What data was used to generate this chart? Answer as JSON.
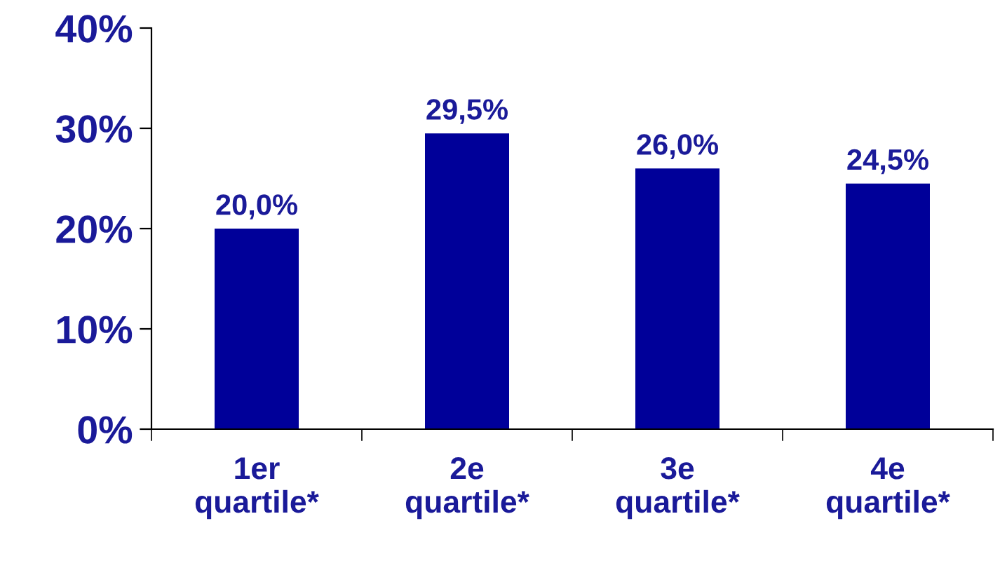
{
  "chart_data": {
    "type": "bar",
    "categories": [
      "1er\nquartile*",
      "2e\nquartile*",
      "3e\nquartile*",
      "4e\nquartile*"
    ],
    "values": [
      20.0,
      29.5,
      26.0,
      24.5
    ],
    "value_labels": [
      "20,0%",
      "29,5%",
      "26,0%",
      "24,5%"
    ],
    "color": "#000099",
    "ylim": [
      0,
      40
    ],
    "yticks": [
      {
        "value": 0,
        "label": "0%"
      },
      {
        "value": 10,
        "label": "10%"
      },
      {
        "value": 20,
        "label": "20%"
      },
      {
        "value": 30,
        "label": "30%"
      },
      {
        "value": 40,
        "label": "40%"
      }
    ],
    "grid": false
  }
}
